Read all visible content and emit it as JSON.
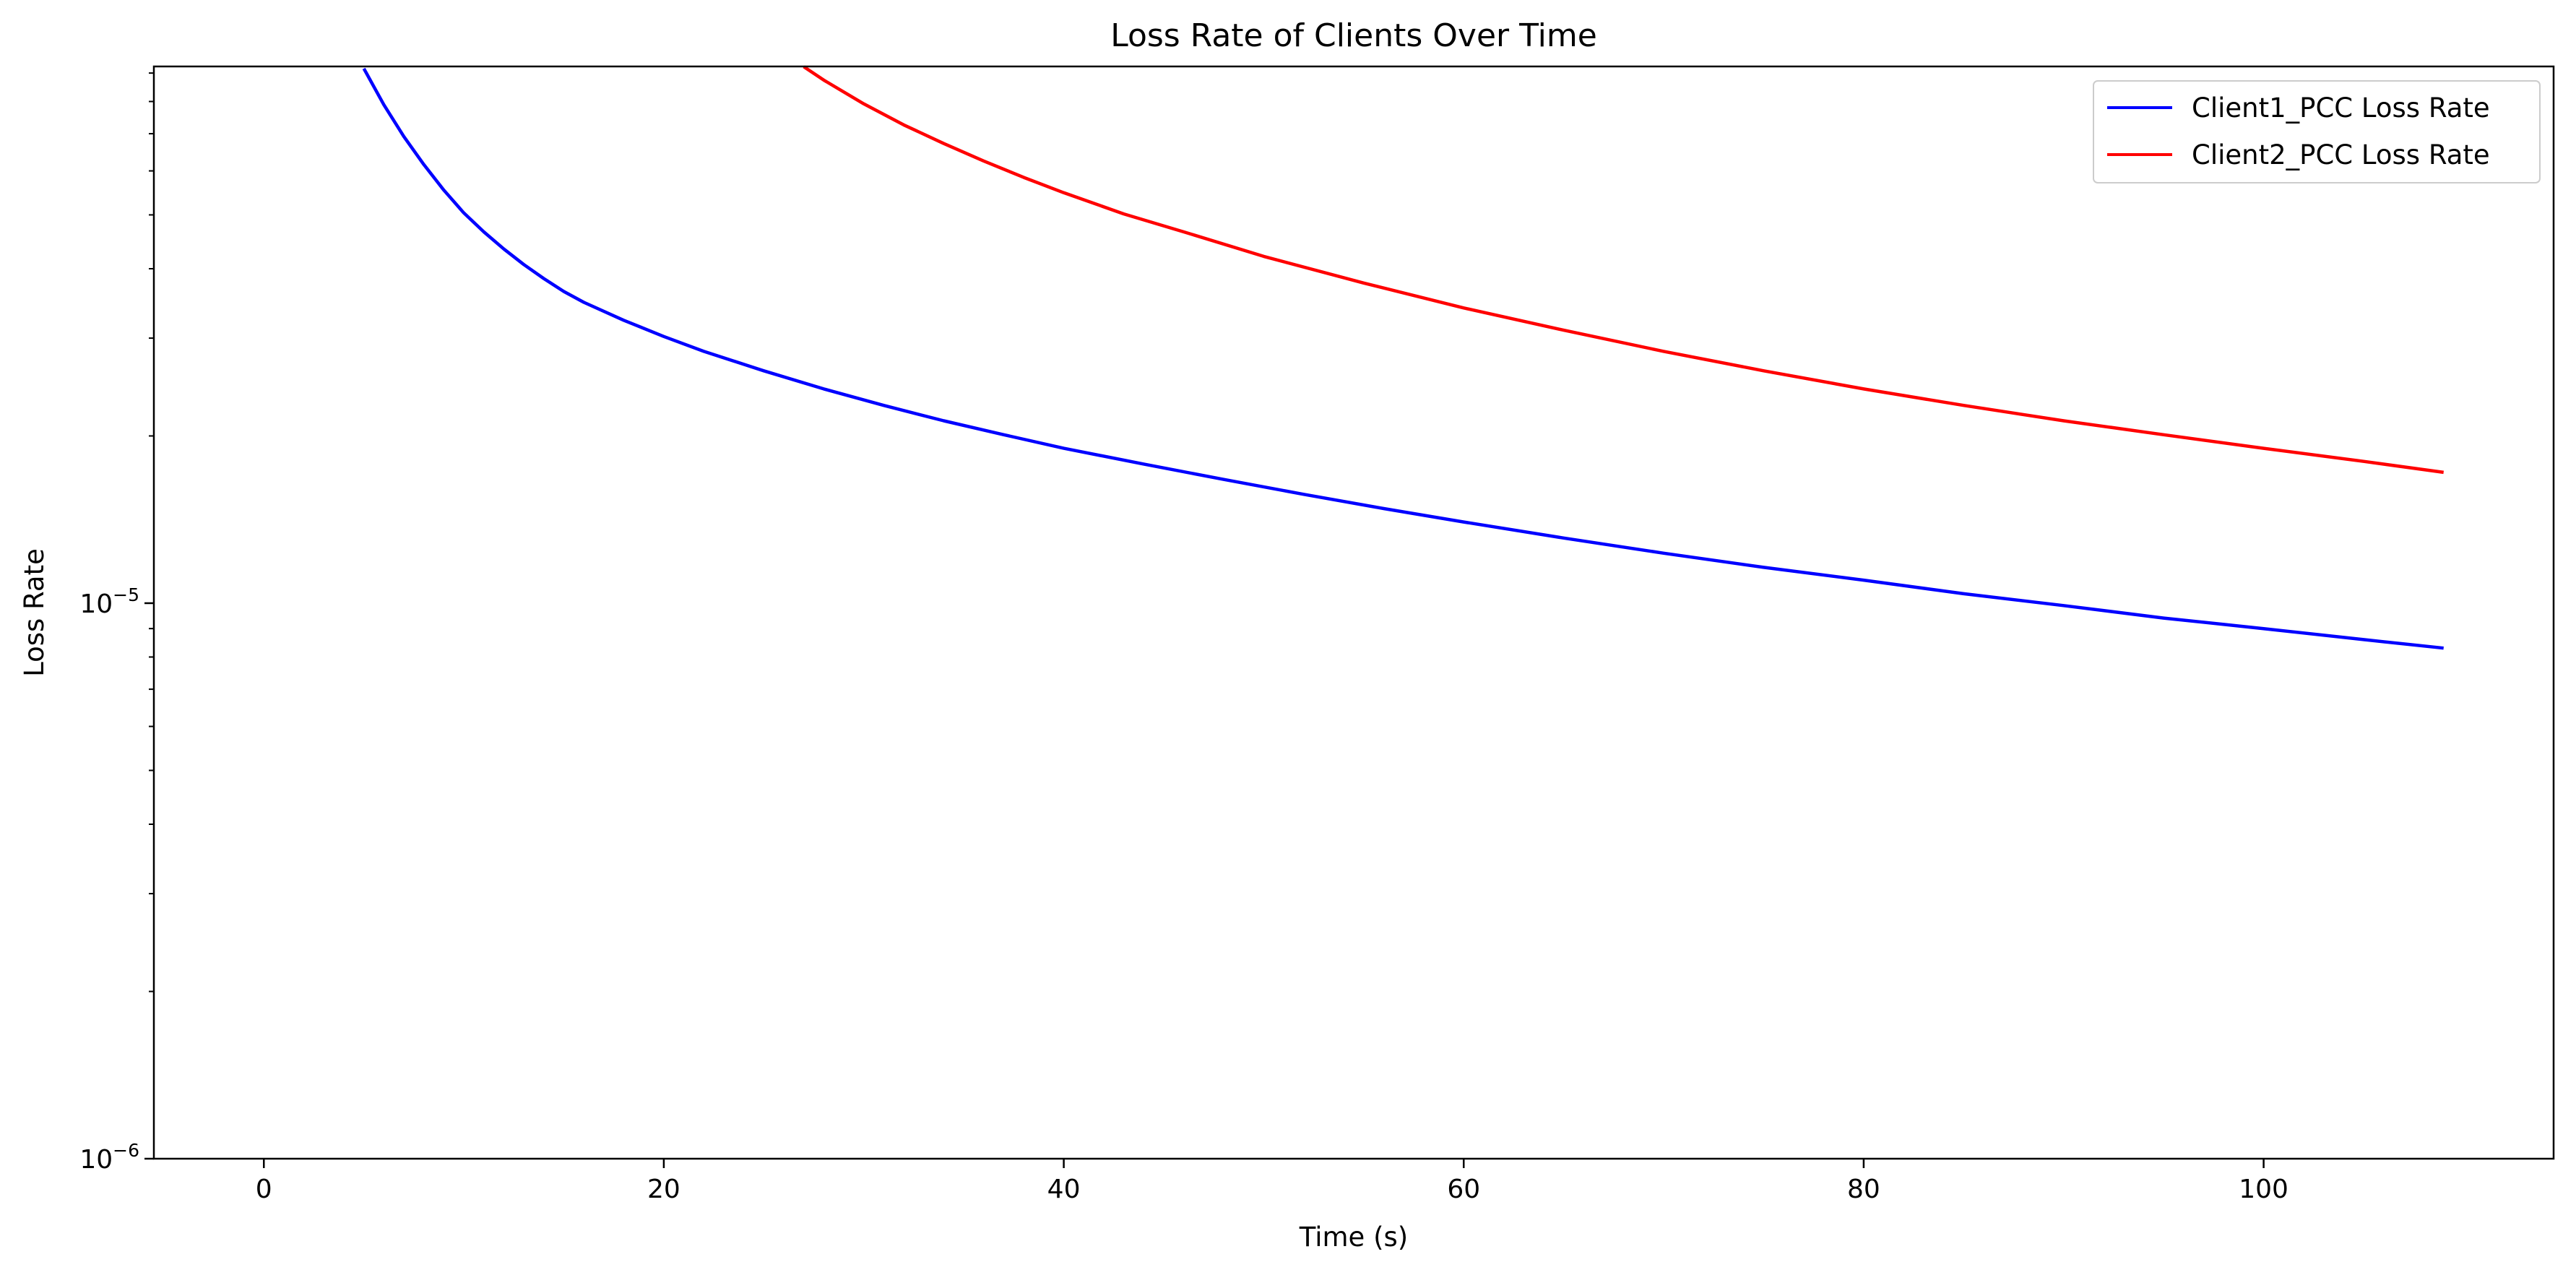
{
  "chart_data": {
    "type": "line",
    "title": "Loss Rate of Clients Over Time",
    "xlabel": "Time (s)",
    "ylabel": "Loss Rate",
    "xlim": [
      -5.5,
      114.5
    ],
    "ylim": [
      1e-06,
      9.25e-05
    ],
    "yscale": "log",
    "x_ticks": [
      0,
      20,
      40,
      60,
      80,
      100
    ],
    "x_tick_labels": [
      "0",
      "20",
      "40",
      "60",
      "80",
      "100"
    ],
    "y_major_ticks": [
      {
        "value": 1e-06,
        "base": "10",
        "exponent": "−6"
      },
      {
        "value": 1e-05,
        "base": "10",
        "exponent": "−5"
      }
    ],
    "y_minor_ticks": [
      2e-06,
      3e-06,
      4e-06,
      5e-06,
      6e-06,
      7e-06,
      8e-06,
      9e-06,
      2e-05,
      3e-05,
      4e-05,
      5e-05,
      6e-05,
      7e-05,
      8e-05,
      9e-05
    ],
    "grid": false,
    "legend_position": "top-right",
    "series": [
      {
        "name": "Client1_PCC Loss Rate",
        "color": "#0000ff",
        "x": [
          5,
          6,
          7,
          8,
          9,
          10,
          11,
          12,
          13,
          14,
          15,
          16,
          18,
          20,
          22,
          25,
          28,
          31,
          34,
          37,
          40,
          44,
          48,
          52,
          56,
          60,
          65,
          70,
          75,
          80,
          85,
          90,
          95,
          100,
          105,
          109
        ],
        "y": [
          9.17e-05,
          7.89e-05,
          6.92e-05,
          6.16e-05,
          5.54e-05,
          5.04e-05,
          4.66e-05,
          4.34e-05,
          4.07e-05,
          3.84e-05,
          3.64e-05,
          3.48e-05,
          3.23e-05,
          3.02e-05,
          2.84e-05,
          2.62e-05,
          2.43e-05,
          2.27e-05,
          2.13e-05,
          2.01e-05,
          1.9e-05,
          1.78e-05,
          1.67e-05,
          1.57e-05,
          1.48e-05,
          1.4e-05,
          1.31e-05,
          1.23e-05,
          1.16e-05,
          1.1e-05,
          1.04e-05,
          9.9e-06,
          9.4e-06,
          9e-06,
          8.6e-06,
          8.3e-06
        ]
      },
      {
        "name": "Client2_PCC Loss Rate",
        "color": "#ff0000",
        "x": [
          27,
          28,
          30,
          32,
          34,
          36,
          38,
          40,
          43,
          46,
          50,
          55,
          60,
          65,
          70,
          75,
          80,
          85,
          90,
          95,
          100,
          105,
          109
        ],
        "y": [
          9.24e-05,
          8.74e-05,
          7.92e-05,
          7.26e-05,
          6.72e-05,
          6.25e-05,
          5.84e-05,
          5.48e-05,
          5.02e-05,
          4.66e-05,
          4.21e-05,
          3.77e-05,
          3.4e-05,
          3.1e-05,
          2.84e-05,
          2.62e-05,
          2.43e-05,
          2.27e-05,
          2.13e-05,
          2.01e-05,
          1.9e-05,
          1.8e-05,
          1.72e-05
        ]
      }
    ]
  }
}
